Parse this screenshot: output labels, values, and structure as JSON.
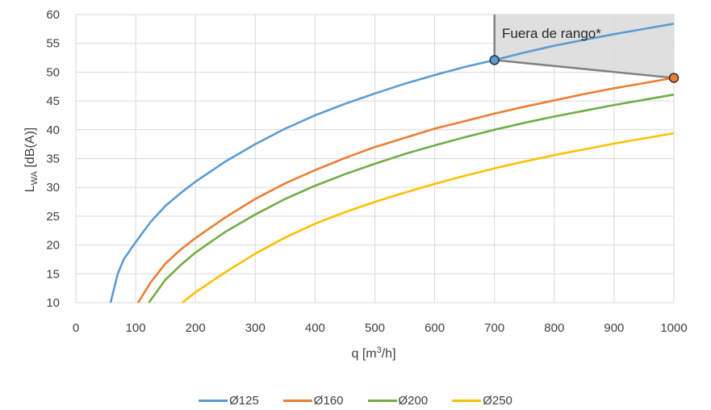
{
  "chart_data": {
    "type": "line",
    "title": "",
    "xlabel": {
      "main": "q [m",
      "sup": "3",
      "tail": "/h]"
    },
    "ylabel": {
      "main": "L",
      "sub": "WA",
      "tail": " [dB(A)]"
    },
    "xlim": [
      0,
      1000
    ],
    "ylim": [
      10,
      60
    ],
    "xticks": [
      0,
      100,
      200,
      300,
      400,
      500,
      600,
      700,
      800,
      900,
      1000
    ],
    "yticks": [
      10,
      15,
      20,
      25,
      30,
      35,
      40,
      45,
      50,
      55,
      60
    ],
    "grid": true,
    "legend_position": "bottom",
    "series": [
      {
        "name": "Ø125",
        "color": "#5B9BD5",
        "x": [
          58,
          70,
          80,
          100,
          125,
          150,
          175,
          200,
          250,
          300,
          350,
          400,
          450,
          500,
          550,
          600,
          650,
          700,
          750,
          800,
          850,
          900,
          950,
          1000
        ],
        "y": [
          10,
          15,
          17.5,
          20.5,
          24,
          26.8,
          29,
          31,
          34.5,
          37.5,
          40.2,
          42.5,
          44.5,
          46.3,
          48,
          49.5,
          50.9,
          52.1,
          53.4,
          54.6,
          55.6,
          56.6,
          57.5,
          58.4
        ]
      },
      {
        "name": "Ø160",
        "color": "#ED7D31",
        "x": [
          104,
          125,
          150,
          175,
          200,
          250,
          300,
          350,
          400,
          450,
          500,
          550,
          600,
          650,
          700,
          750,
          800,
          850,
          900,
          950,
          1000
        ],
        "y": [
          10,
          13.5,
          16.8,
          19.2,
          21.2,
          24.8,
          28,
          30.7,
          33,
          35.1,
          37,
          38.6,
          40.2,
          41.5,
          42.8,
          44,
          45.1,
          46.2,
          47.2,
          48.1,
          49
        ]
      },
      {
        "name": "Ø200",
        "color": "#70AD47",
        "x": [
          122,
          150,
          175,
          200,
          250,
          300,
          350,
          400,
          450,
          500,
          550,
          600,
          650,
          700,
          750,
          800,
          850,
          900,
          950,
          1000
        ],
        "y": [
          10,
          14,
          16.5,
          18.7,
          22.3,
          25.3,
          28,
          30.3,
          32.3,
          34.1,
          35.8,
          37.3,
          38.7,
          40,
          41.2,
          42.3,
          43.3,
          44.3,
          45.2,
          46.1
        ]
      },
      {
        "name": "Ø250",
        "color": "#FFC000",
        "x": [
          178,
          200,
          250,
          300,
          350,
          400,
          450,
          500,
          550,
          600,
          650,
          700,
          750,
          800,
          850,
          900,
          950,
          1000
        ],
        "y": [
          10,
          11.8,
          15.3,
          18.5,
          21.3,
          23.7,
          25.7,
          27.5,
          29.1,
          30.6,
          32,
          33.3,
          34.5,
          35.6,
          36.6,
          37.6,
          38.5,
          39.4
        ]
      }
    ],
    "shaded_region": {
      "label": "Fuera de rango*",
      "fill": "#D9D9D9",
      "border": "#7F7F7F",
      "polygon": [
        [
          700,
          60
        ],
        [
          1000,
          60
        ],
        [
          1000,
          49
        ],
        [
          700,
          52.1
        ]
      ]
    },
    "markers": [
      {
        "x": 700,
        "y": 52.1,
        "color": "#5B9BD5"
      },
      {
        "x": 1000,
        "y": 49,
        "color": "#ED7D31"
      }
    ]
  }
}
